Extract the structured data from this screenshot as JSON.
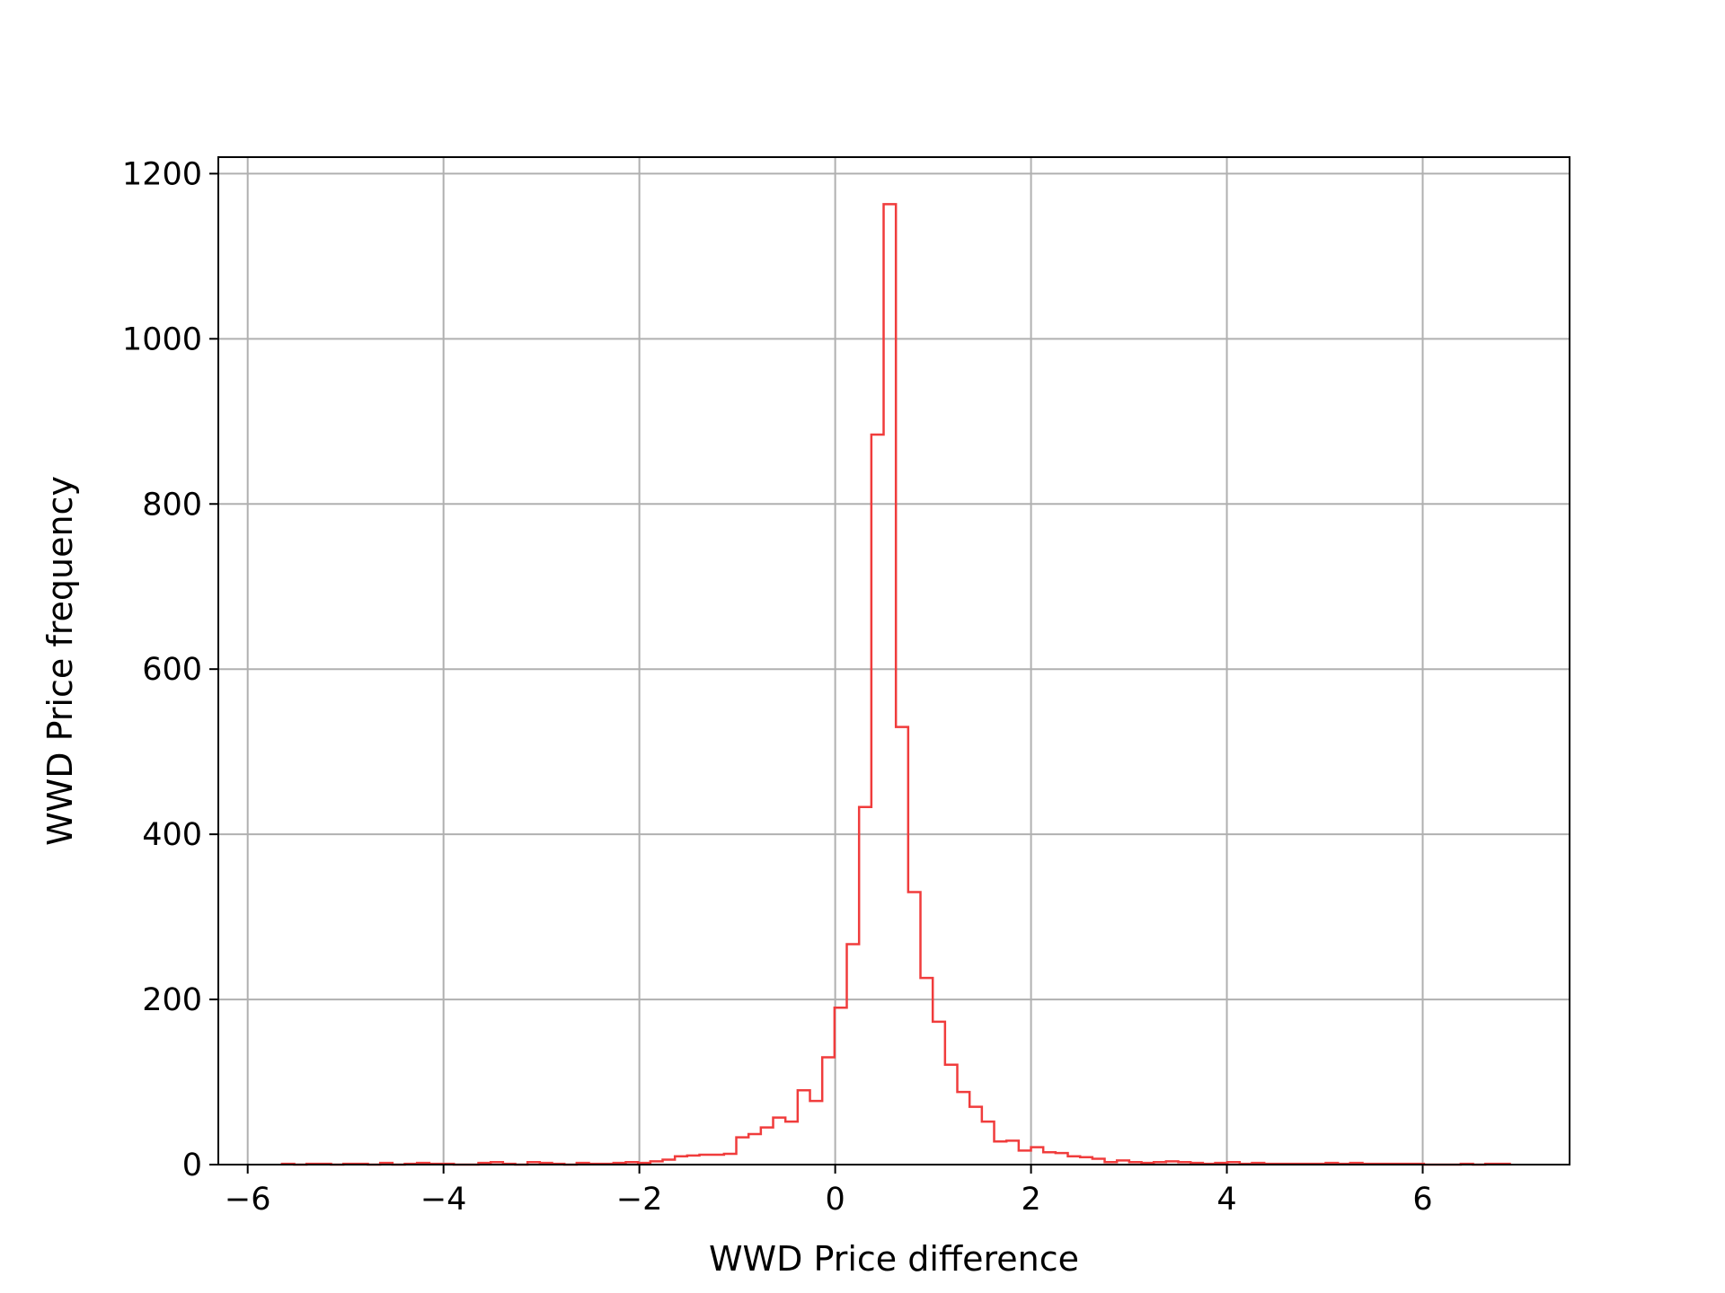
{
  "chart_data": {
    "type": "histogram",
    "title": "",
    "xlabel": "WWD Price difference",
    "ylabel": "WWD Price frequency",
    "xlim": [
      -6.3,
      7.5
    ],
    "ylim": [
      0,
      1220
    ],
    "grid": true,
    "histtype": "step",
    "color": "#f03c3c",
    "x_ticks": [
      {
        "value": -6,
        "label": "−6"
      },
      {
        "value": -4,
        "label": "−4"
      },
      {
        "value": -2,
        "label": "−2"
      },
      {
        "value": 0,
        "label": "0"
      },
      {
        "value": 2,
        "label": "2"
      },
      {
        "value": 4,
        "label": "4"
      },
      {
        "value": 6,
        "label": "6"
      }
    ],
    "y_ticks": [
      {
        "value": 0,
        "label": "0"
      },
      {
        "value": 200,
        "label": "200"
      },
      {
        "value": 400,
        "label": "400"
      },
      {
        "value": 600,
        "label": "600"
      },
      {
        "value": 800,
        "label": "800"
      },
      {
        "value": 1000,
        "label": "1000"
      },
      {
        "value": 1200,
        "label": "1200"
      }
    ],
    "bin_start": -5.65,
    "bin_width": 0.1254,
    "counts": [
      1,
      0,
      1,
      1,
      0,
      1,
      1,
      0,
      2,
      0,
      1,
      2,
      1,
      1,
      0,
      0,
      2,
      3,
      1,
      0,
      3,
      2,
      1,
      0,
      2,
      1,
      1,
      2,
      3,
      2,
      4,
      6,
      10,
      11,
      12,
      12,
      13,
      33,
      37,
      45,
      57,
      52,
      90,
      77,
      130,
      190,
      267,
      433,
      884,
      1163,
      530,
      330,
      226,
      173,
      121,
      88,
      70,
      52,
      28,
      29,
      17,
      21,
      15,
      14,
      10,
      9,
      7,
      3,
      5,
      3,
      2,
      3,
      4,
      3,
      2,
      1,
      2,
      3,
      1,
      2,
      1,
      1,
      1,
      1,
      1,
      2,
      1,
      2,
      1,
      1,
      1,
      1,
      1,
      0,
      0,
      0,
      1,
      0,
      1,
      1
    ]
  }
}
